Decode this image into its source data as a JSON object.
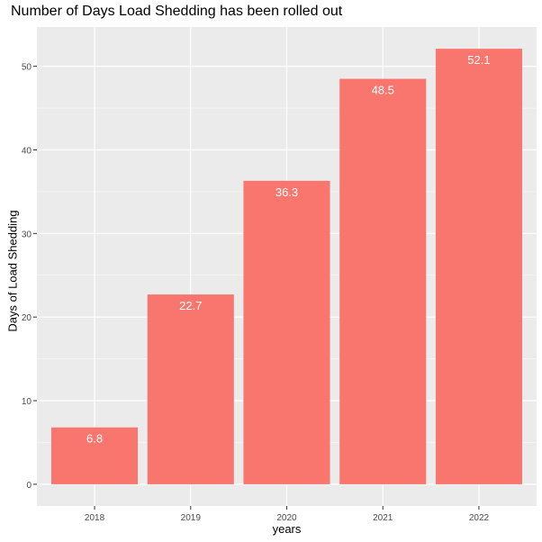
{
  "chart_data": {
    "type": "bar",
    "title": "Number of Days Load Shedding has been rolled out",
    "xlabel": "years",
    "ylabel": "Days of Load Shedding",
    "categories": [
      "2018",
      "2019",
      "2020",
      "2021",
      "2022"
    ],
    "values": [
      6.8,
      22.7,
      36.3,
      48.5,
      52.1
    ],
    "data_labels": [
      "6.8",
      "22.7",
      "36.3",
      "48.5",
      "52.1"
    ],
    "ylim": [
      -2.6,
      54.7
    ],
    "yticks": [
      0,
      10,
      20,
      30,
      40,
      50
    ],
    "grid": true,
    "legend": "none",
    "colors": {
      "bar": "#F8766D",
      "panel": "#EBEBEB",
      "grid_major": "#FFFFFF",
      "grid_minor": "#F5F5F5",
      "tick_text": "#4D4D4D",
      "data_label": "#FFFFFF"
    }
  }
}
